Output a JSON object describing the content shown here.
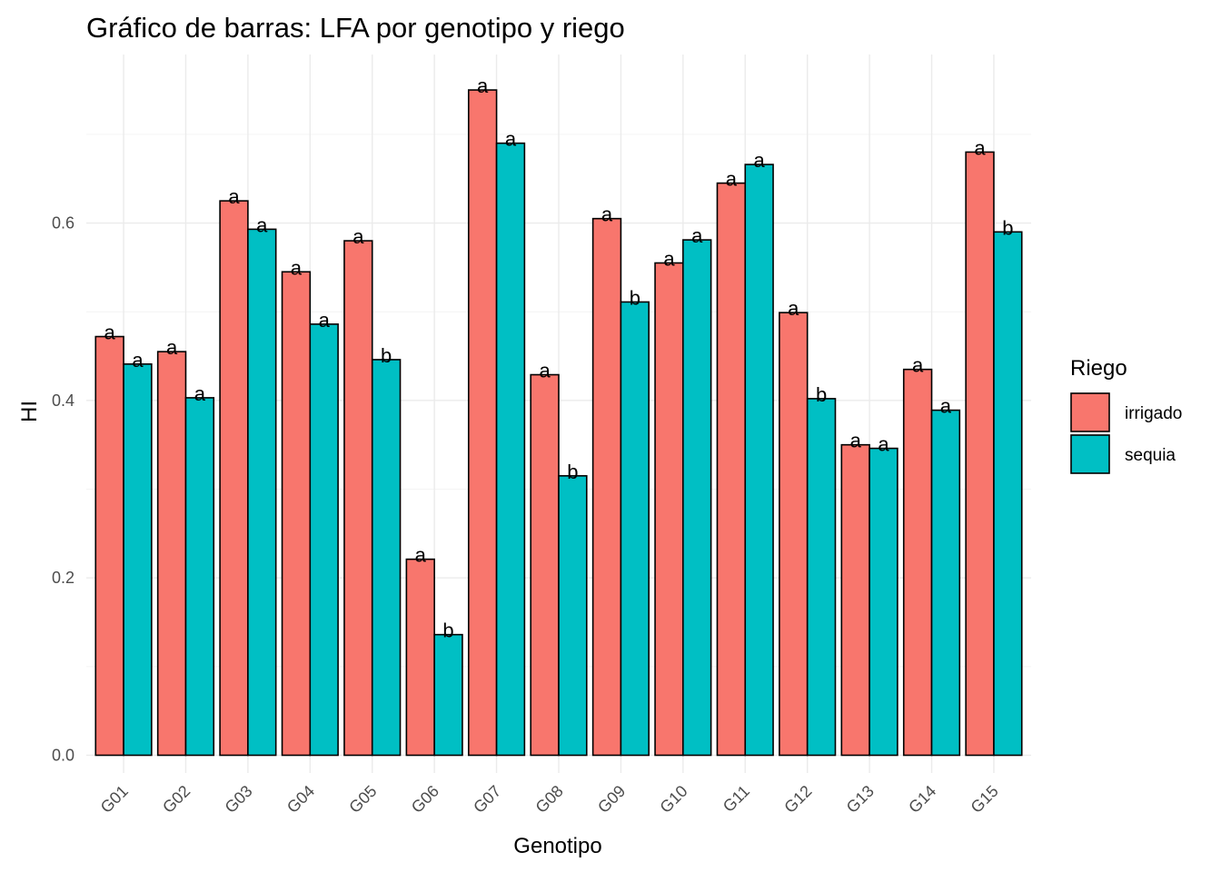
{
  "chart_data": {
    "type": "bar",
    "title": "Gráfico de barras: LFA por genotipo y riego",
    "xlabel": "Genotipo",
    "ylabel": "HI",
    "categories": [
      "G01",
      "G02",
      "G03",
      "G04",
      "G05",
      "G06",
      "G07",
      "G08",
      "G09",
      "G10",
      "G11",
      "G12",
      "G13",
      "G14",
      "G15"
    ],
    "ylim": [
      -0.02,
      0.79
    ],
    "yticks": [
      0.0,
      0.2,
      0.4,
      0.6
    ],
    "ytick_labels": [
      "0.0",
      "0.2",
      "0.4",
      "0.6"
    ],
    "grid": true,
    "legend": {
      "title": "Riego",
      "position": "right"
    },
    "series": [
      {
        "name": "irrigado",
        "color": "#F8766D",
        "values": [
          0.472,
          0.455,
          0.625,
          0.545,
          0.58,
          0.221,
          0.75,
          0.429,
          0.605,
          0.555,
          0.645,
          0.499,
          0.35,
          0.435,
          0.68
        ],
        "labels": [
          "a",
          "a",
          "a",
          "a",
          "a",
          "a",
          "a",
          "a",
          "a",
          "a",
          "a",
          "a",
          "a",
          "a",
          "a"
        ]
      },
      {
        "name": "sequia",
        "color": "#00BFC4",
        "values": [
          0.441,
          0.403,
          0.593,
          0.486,
          0.446,
          0.136,
          0.69,
          0.315,
          0.511,
          0.581,
          0.666,
          0.402,
          0.346,
          0.389,
          0.59
        ],
        "labels": [
          "a",
          "a",
          "a",
          "a",
          "b",
          "b",
          "a",
          "b",
          "b",
          "a",
          "a",
          "b",
          "a",
          "a",
          "b"
        ]
      }
    ]
  }
}
